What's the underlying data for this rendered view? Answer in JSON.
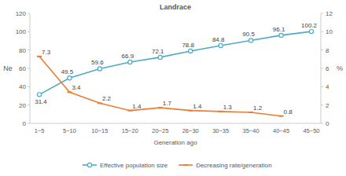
{
  "chart_data": {
    "type": "line",
    "title": "Landrace",
    "x_label": "Generation ago",
    "y_label": "Ne",
    "y2_label": "%",
    "categories": [
      "1~5",
      "5~10",
      "10~15",
      "15~20",
      "20~25",
      "26~30",
      "30~35",
      "35~40",
      "40~45",
      "45~50"
    ],
    "series": [
      {
        "name": "Effective population size",
        "color": "#4bacc6",
        "marker": "circle",
        "values": [
          31.4,
          49.5,
          59.6,
          66.9,
          72.1,
          78.8,
          84.8,
          90.5,
          96.1,
          100.2
        ]
      },
      {
        "name": "Decreasing rate/generation",
        "color": "#ed7d31",
        "marker": "dash",
        "axis": "y2",
        "values": [
          7.3,
          3.4,
          2.2,
          1.4,
          1.7,
          1.4,
          1.3,
          1.2,
          0.8,
          null
        ]
      }
    ],
    "ylim": [
      0,
      120
    ],
    "yticks": [
      0,
      20,
      40,
      60,
      80,
      100,
      120
    ],
    "y2lim": [
      0,
      12
    ],
    "y2ticks": [
      0,
      2,
      4,
      6,
      8,
      10,
      12
    ],
    "grid": false,
    "legend": "bottom",
    "data_labels": true
  }
}
